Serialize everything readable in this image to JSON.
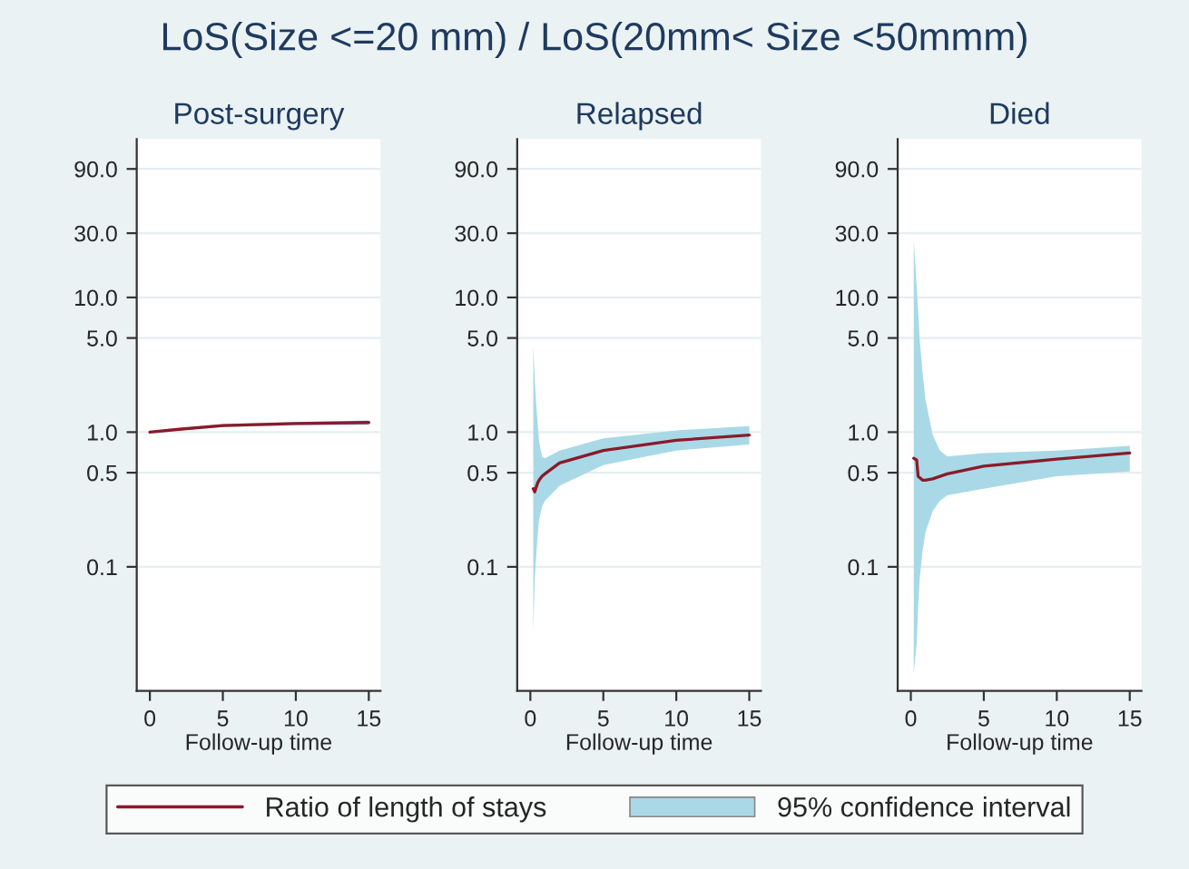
{
  "chart_data": [
    {
      "type": "line",
      "title": "Post-surgery",
      "xlabel": "Follow-up time",
      "annotations": [
        "LoS(Size <=20 mm) / LoS(20mm< Size <50mmm)",
        "95% confidence interval"
      ],
      "log": true,
      "grid": "y",
      "legend": "bottom",
      "xlim": [
        -0.9,
        15.8
      ],
      "xticks": [
        0,
        5,
        10,
        15
      ],
      "ylim": [
        0.012,
        150
      ],
      "yticks": [
        {
          "value": 0.1,
          "label": "0.1"
        },
        {
          "value": 0.5,
          "label": "0.5"
        },
        {
          "value": 1,
          "label": "1.0"
        },
        {
          "value": 5,
          "label": "5.0"
        },
        {
          "value": 10,
          "label": "10.0"
        },
        {
          "value": 30,
          "label": "30.0"
        },
        {
          "value": 90,
          "label": "90.0"
        }
      ],
      "series": [
        {
          "name": "Ratio of length of stays",
          "color": "#8b1a2b",
          "x": [
            0,
            2,
            5,
            10,
            15
          ],
          "values": [
            1.0,
            1.05,
            1.12,
            1.16,
            1.18
          ],
          "lower": [
            0.99,
            1.03,
            1.09,
            1.12,
            1.13
          ],
          "upper": [
            1.01,
            1.07,
            1.15,
            1.19,
            1.22
          ]
        }
      ]
    },
    {
      "type": "line",
      "title": "Relapsed",
      "xlabel": "Follow-up time",
      "log": true,
      "grid": "y",
      "xlim": [
        -0.9,
        15.8
      ],
      "xticks": [
        0,
        5,
        10,
        15
      ],
      "ylim": [
        0.012,
        150
      ],
      "yticks": [
        {
          "value": 0.1,
          "label": "0.1"
        },
        {
          "value": 0.5,
          "label": "0.5"
        },
        {
          "value": 1,
          "label": "1.0"
        },
        {
          "value": 5,
          "label": "5.0"
        },
        {
          "value": 10,
          "label": "10.0"
        },
        {
          "value": 30,
          "label": "30.0"
        },
        {
          "value": 90,
          "label": "90.0"
        }
      ],
      "series": [
        {
          "color": "#8b1a2b",
          "x": [
            0.2,
            0.3,
            0.4,
            0.5,
            0.6,
            0.8,
            1,
            2,
            5,
            10,
            15
          ],
          "values": [
            0.38,
            0.36,
            0.39,
            0.42,
            0.44,
            0.47,
            0.49,
            0.59,
            0.73,
            0.87,
            0.95
          ],
          "lower": [
            0.033,
            0.08,
            0.12,
            0.17,
            0.225,
            0.28,
            0.31,
            0.4,
            0.57,
            0.73,
            0.81
          ],
          "upper": [
            4.4,
            2.5,
            1.6,
            1.17,
            0.85,
            0.66,
            0.64,
            0.73,
            0.9,
            1.03,
            1.11
          ]
        }
      ]
    },
    {
      "type": "line",
      "title": "Died",
      "xlabel": "Follow-up time",
      "log": true,
      "grid": "y",
      "xlim": [
        -0.9,
        15.8
      ],
      "xticks": [
        0,
        5,
        10,
        15
      ],
      "ylim": [
        0.012,
        150
      ],
      "yticks": [
        {
          "value": 0.1,
          "label": "0.1"
        },
        {
          "value": 0.5,
          "label": "0.5"
        },
        {
          "value": 1,
          "label": "1.0"
        },
        {
          "value": 5,
          "label": "5.0"
        },
        {
          "value": 10,
          "label": "10.0"
        },
        {
          "value": 30,
          "label": "30.0"
        },
        {
          "value": 90,
          "label": "90.0"
        }
      ],
      "series": [
        {
          "color": "#8b1a2b",
          "x": [
            0.2,
            0.4,
            0.5,
            0.6,
            0.8,
            1,
            1.5,
            2,
            2.5,
            5,
            10,
            15
          ],
          "values": [
            0.64,
            0.62,
            0.47,
            0.46,
            0.44,
            0.44,
            0.45,
            0.47,
            0.49,
            0.56,
            0.63,
            0.7
          ],
          "lower": [
            0.016,
            0.027,
            0.05,
            0.08,
            0.13,
            0.18,
            0.26,
            0.31,
            0.34,
            0.38,
            0.47,
            0.51
          ],
          "upper": [
            26.8,
            12,
            8,
            5,
            2.8,
            1.76,
            0.95,
            0.73,
            0.66,
            0.7,
            0.73,
            0.79
          ]
        }
      ]
    }
  ]
}
